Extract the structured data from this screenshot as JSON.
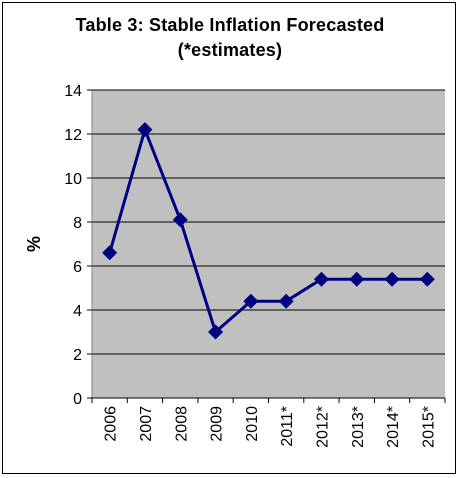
{
  "chart_data": {
    "type": "line",
    "title": "Table 3: Stable Inflation Forecasted",
    "subtitle": "(*estimates)",
    "xlabel": "",
    "ylabel": "%",
    "categories": [
      "2006",
      "2007",
      "2008",
      "2009",
      "2010",
      "2011*",
      "2012*",
      "2013*",
      "2014*",
      "2015*"
    ],
    "series": [
      {
        "values": [
          6.6,
          12.2,
          8.1,
          3.0,
          4.4,
          4.4,
          5.4,
          5.4,
          5.4,
          5.4
        ]
      }
    ],
    "ylim": [
      0,
      14
    ],
    "yticks": [
      0,
      2,
      4,
      6,
      8,
      10,
      12,
      14
    ],
    "grid": true,
    "legend": "none",
    "colors": {
      "plot_background": "#c0c0c0",
      "line": "#000080",
      "marker": "#000080",
      "gridline": "#000000"
    },
    "marker": "diamond"
  }
}
